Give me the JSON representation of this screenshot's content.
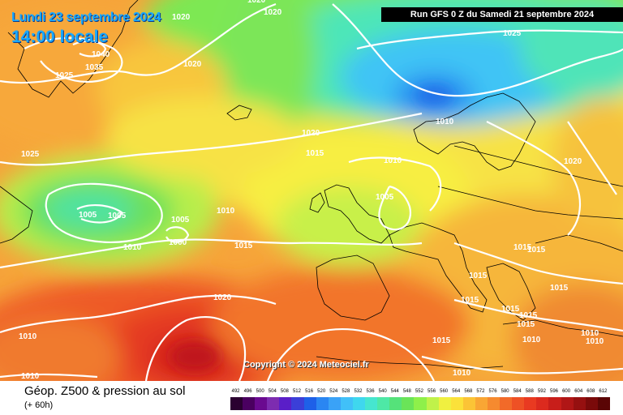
{
  "header": {
    "date": "Lundi 23 septembre 2024",
    "time": "14:00 locale",
    "run": "Run GFS 0 Z du Samedi 21 septembre 2024"
  },
  "copyright": "Copyright © 2024 Meteociel.fr",
  "footer": {
    "title": "Géop. Z500 & pression au sol",
    "subtitle": "(+ 60h)"
  },
  "scale": {
    "labels": [
      "492",
      "496",
      "500",
      "504",
      "508",
      "512",
      "516",
      "520",
      "524",
      "528",
      "532",
      "536",
      "540",
      "544",
      "548",
      "552",
      "556",
      "560",
      "564",
      "568",
      "572",
      "576",
      "580",
      "584",
      "588",
      "592",
      "596",
      "600",
      "604",
      "608",
      "612"
    ],
    "colors": [
      "#2a0030",
      "#4a0060",
      "#6a0a90",
      "#7d2cb0",
      "#5a1ec8",
      "#3b3fd8",
      "#1e60e8",
      "#2a86f2",
      "#3aa2f7",
      "#41c0f8",
      "#3fd7ee",
      "#46e6cf",
      "#4ee8a6",
      "#55e27a",
      "#6ae458",
      "#8ef04a",
      "#c0f24a",
      "#f0f040",
      "#fbe13a",
      "#fbc436",
      "#f9a634",
      "#f68a2f",
      "#f26a29",
      "#ee5125",
      "#e93a21",
      "#dc2a1e",
      "#c81e1a",
      "#b01616",
      "#961010",
      "#7a0a0a",
      "#5a0505"
    ]
  },
  "pressure_labels": [
    "1020",
    "1020",
    "1020",
    "1040",
    "1035",
    "1025",
    "1020",
    "1025",
    "1020",
    "1010",
    "1015",
    "1025",
    "1020",
    "1010",
    "1005",
    "1005",
    "1005",
    "1005",
    "1000",
    "1010",
    "1010",
    "1015",
    "1020",
    "1015",
    "1015",
    "1015",
    "1015",
    "1015",
    "1015",
    "1015",
    "1015",
    "1015",
    "1010",
    "1010",
    "1010",
    "1010",
    "1010",
    "1010"
  ]
}
